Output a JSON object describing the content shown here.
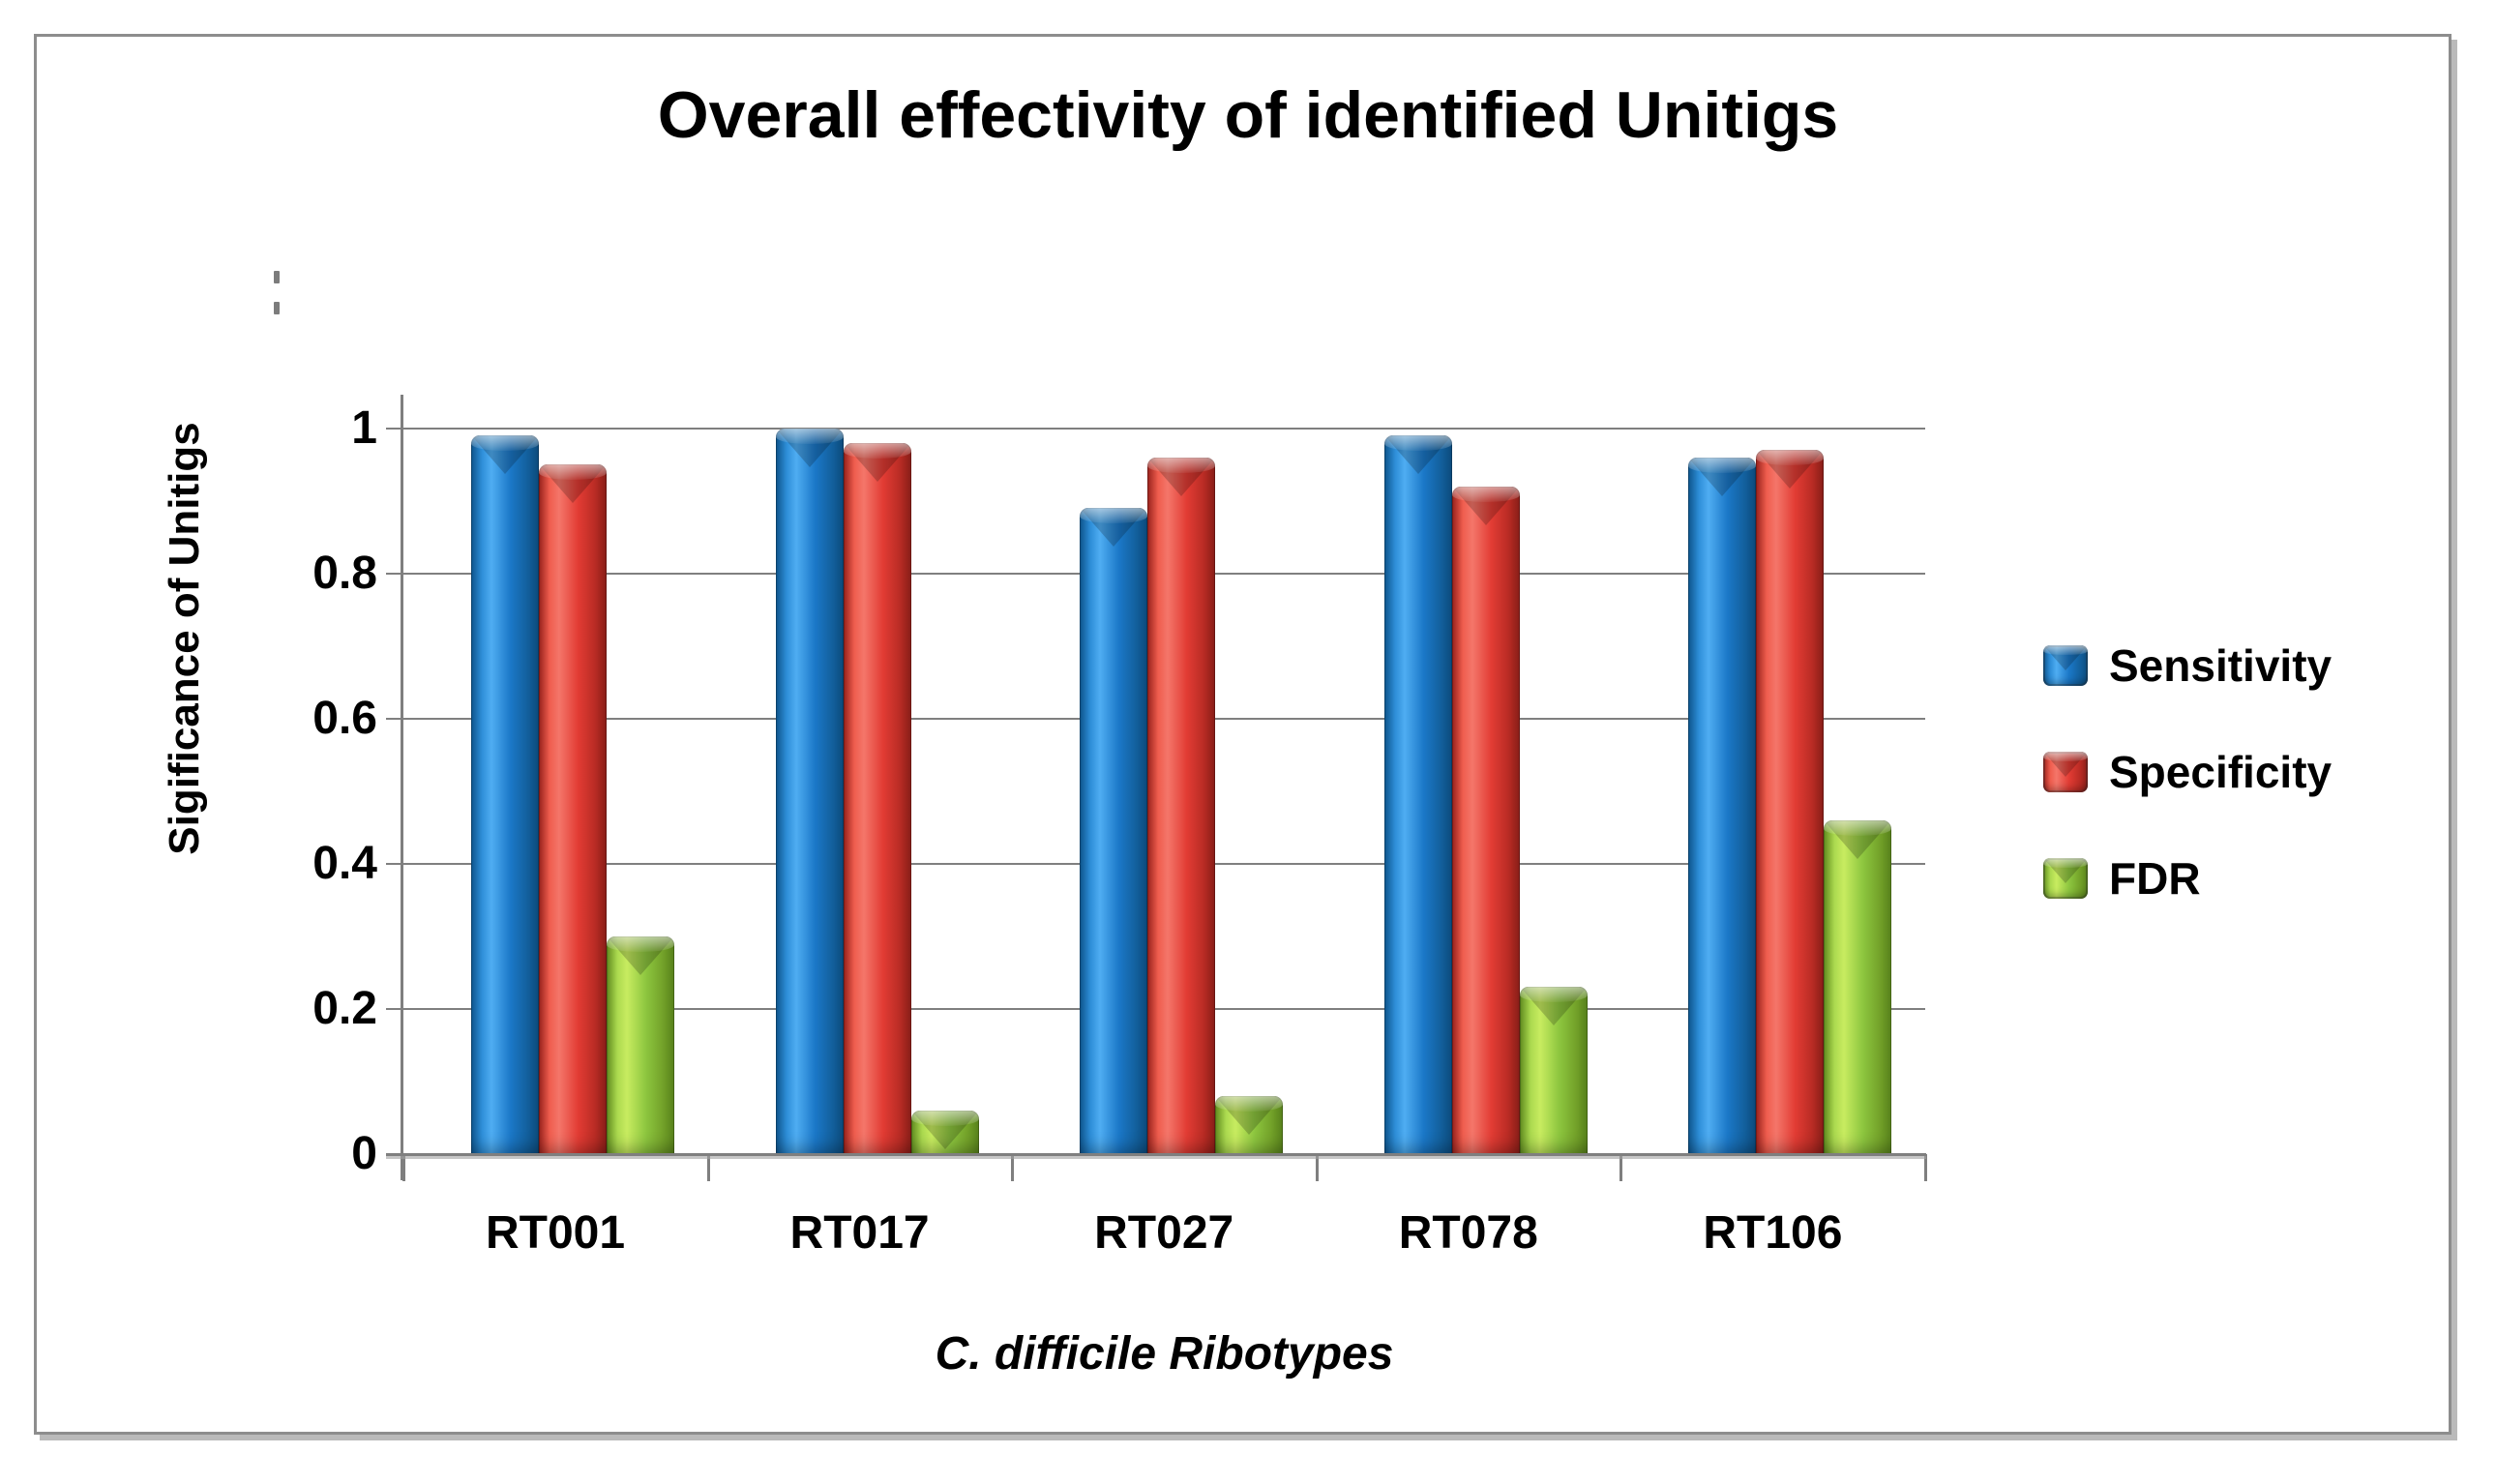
{
  "title": "Overall effectivity of identified Unitigs",
  "y_axis": {
    "title": "Sigificance of Unitigs",
    "tick_labels": [
      "1",
      "0.8",
      "0.6",
      "0.4",
      "0.2",
      "0"
    ]
  },
  "x_axis": {
    "title": "C. difficile Ribotypes"
  },
  "legend": {
    "position": "right",
    "items": [
      {
        "label": "Sensitivity",
        "color": "#1b78c8"
      },
      {
        "label": "Specificity",
        "color": "#e23c34"
      },
      {
        "label": "FDR",
        "color": "#8dc63f"
      }
    ]
  },
  "chart_data": {
    "type": "bar",
    "title": "Overall effectivity of identified Unitigs",
    "categories": [
      "RT001",
      "RT017",
      "RT027",
      "RT078",
      "RT106"
    ],
    "series": [
      {
        "name": "Sensitivity",
        "color": "#1b78c8",
        "values": [
          0.99,
          1.0,
          0.89,
          0.99,
          0.96
        ]
      },
      {
        "name": "Specificity",
        "color": "#e23c34",
        "values": [
          0.95,
          0.98,
          0.96,
          0.92,
          0.97
        ]
      },
      {
        "name": "FDR",
        "color": "#8dc63f",
        "values": [
          0.3,
          0.06,
          0.08,
          0.23,
          0.46
        ]
      }
    ],
    "xlabel": "C. difficile Ribotypes",
    "ylabel": "Sigificance of Unitigs",
    "ylim": [
      0,
      1
    ],
    "ytick_step": 0.2,
    "grid": true,
    "legend_position": "right",
    "style": "glossy-3d-bars"
  }
}
